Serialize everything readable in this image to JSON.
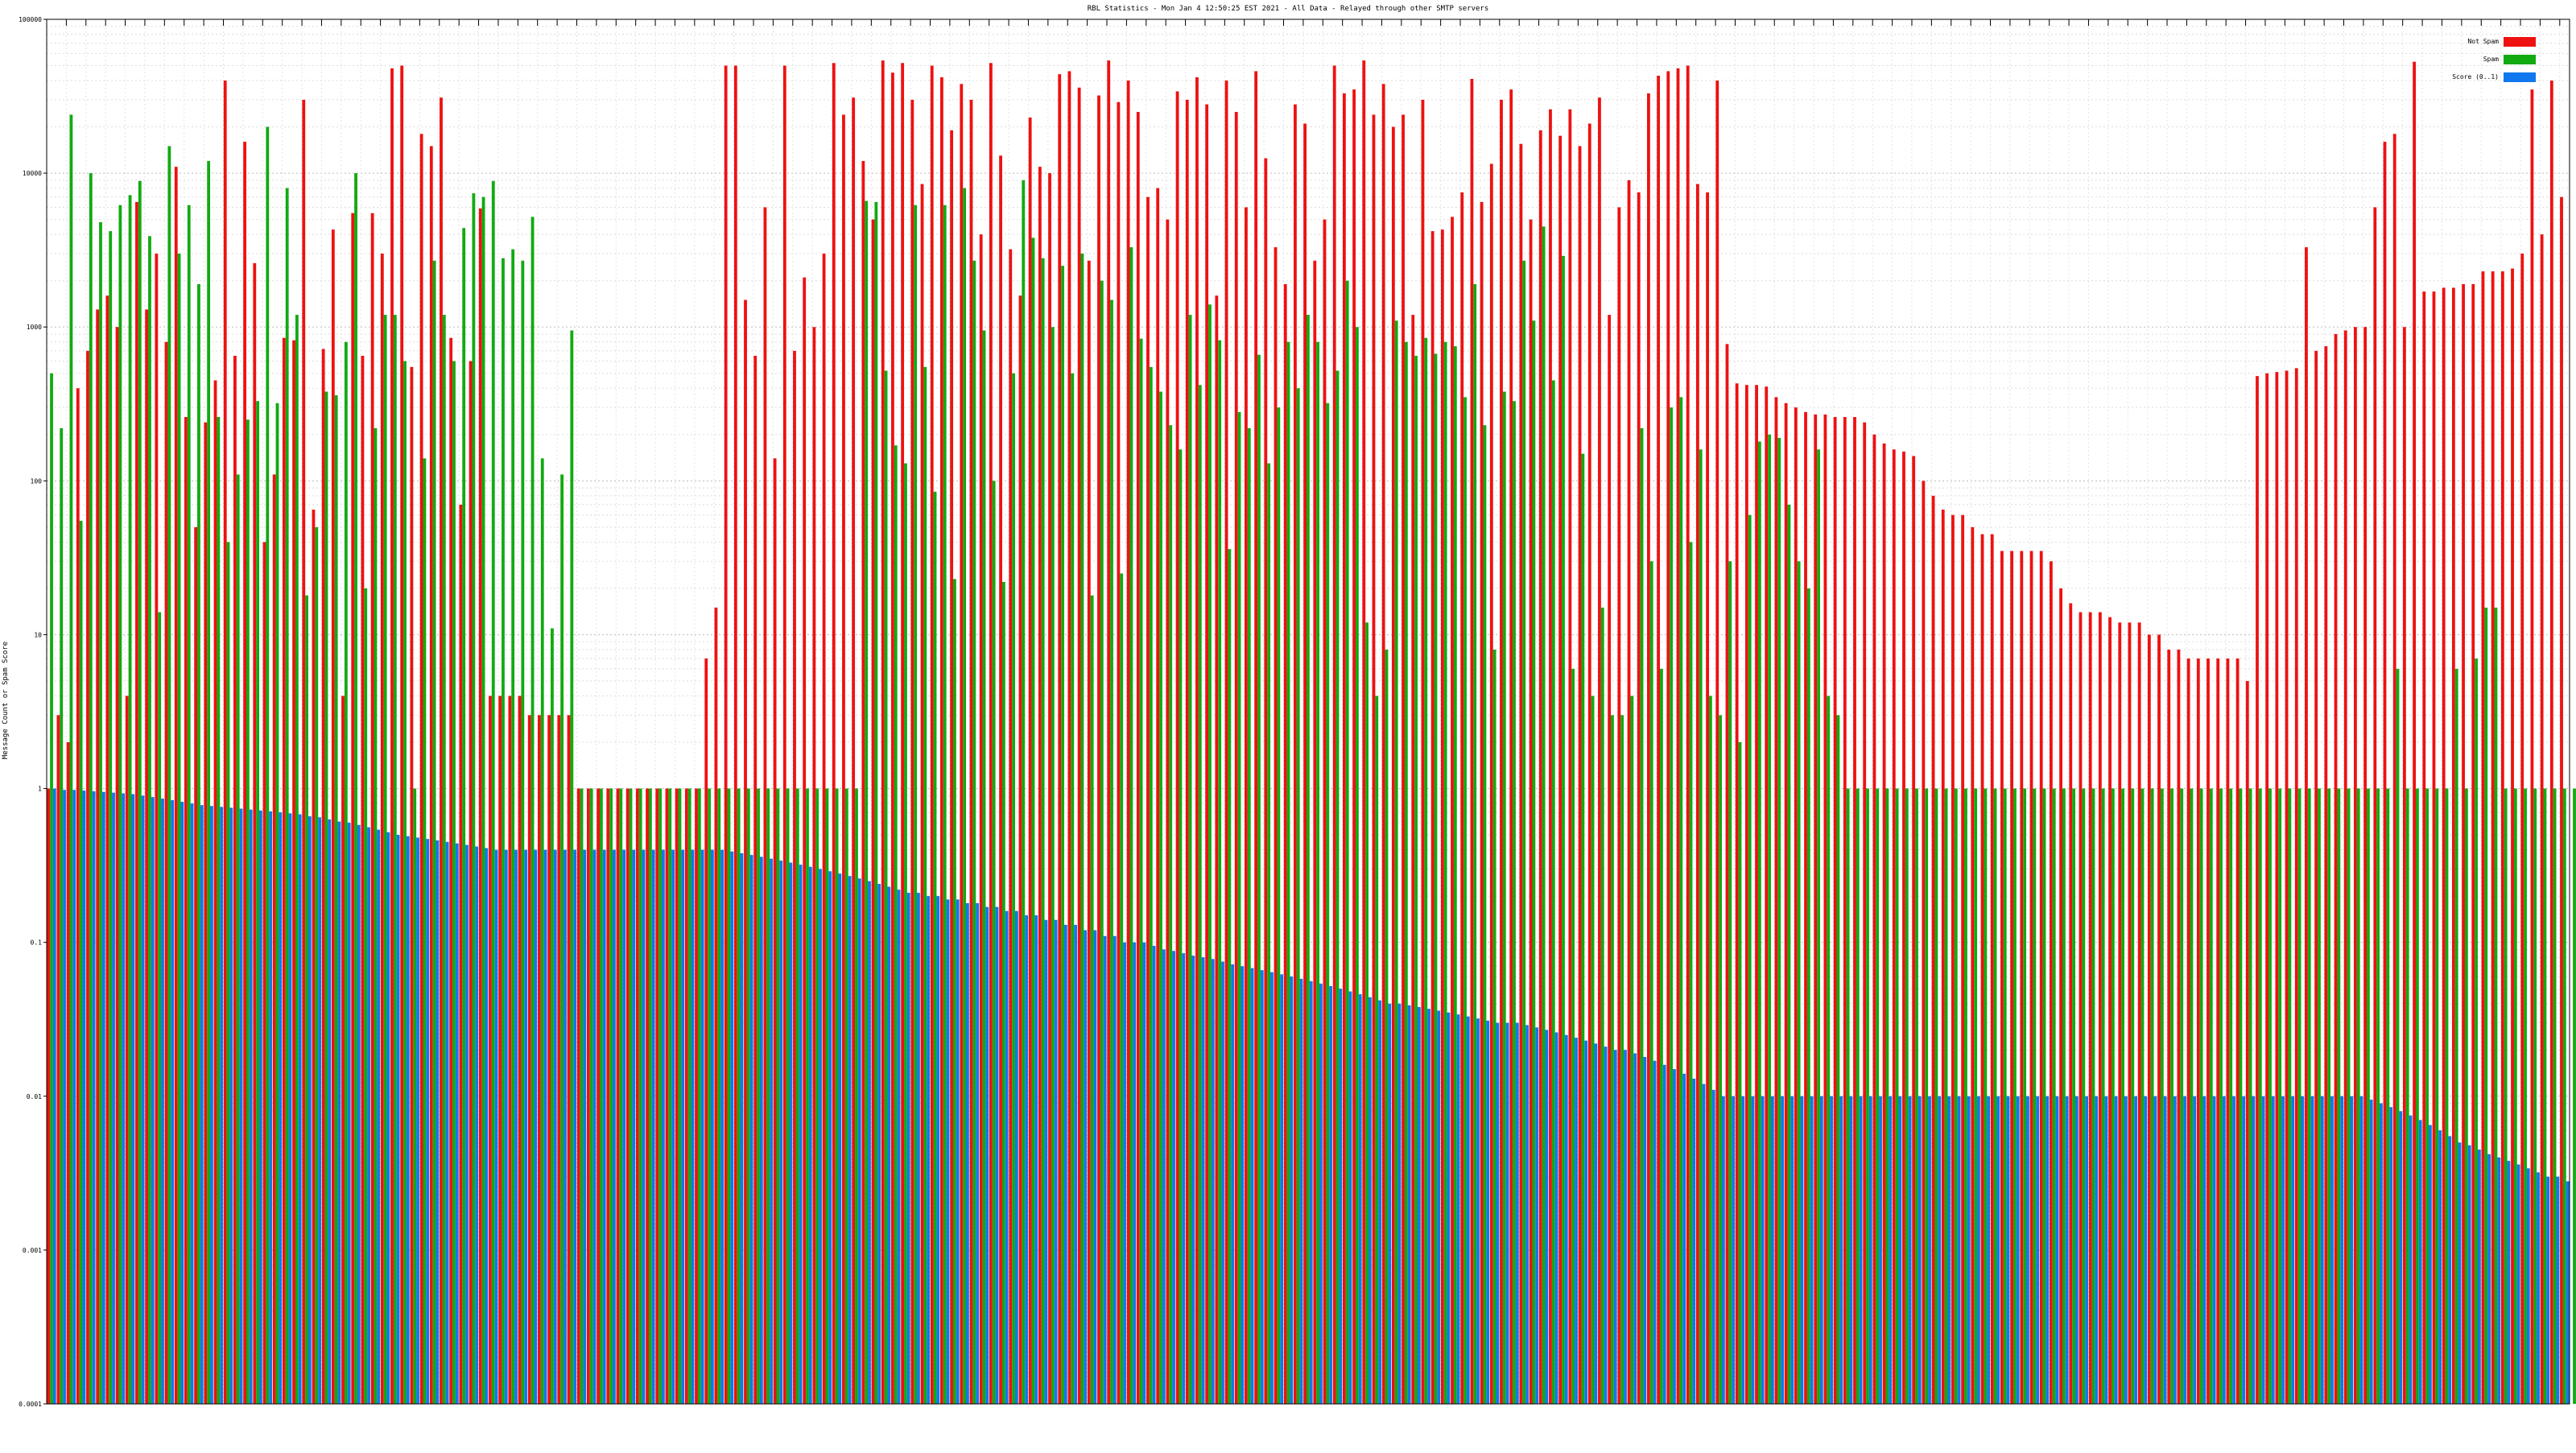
{
  "chart_data": {
    "type": "bar",
    "title": "RBL Statistics - Mon Jan  4 12:50:25 EST 2021 - All Data - Relayed through other SMTP servers",
    "ylabel": "Message Count or Spam Score",
    "xlabel": "",
    "y_scale": "log",
    "ylim": [
      0.0001,
      100000
    ],
    "y_ticks": [
      "0.0001",
      "0.001",
      "0.01",
      "0.1",
      "1",
      "10",
      "100",
      "1000",
      "10000",
      "100000"
    ],
    "grid": true,
    "legend_placement": "top-right",
    "colors": {
      "Not Spam": "#ee1111",
      "Spam": "#11aa11",
      "Score (0..1)": "#1177ee"
    },
    "series": [
      {
        "name": "Not Spam",
        "values": [
          1,
          3,
          2,
          400,
          700,
          1300,
          1600,
          1000,
          4,
          6500,
          1300,
          3000,
          800,
          11000,
          260,
          50,
          240,
          450,
          40000,
          650,
          16000,
          2600,
          40,
          110,
          850,
          820,
          30000,
          65,
          720,
          4300,
          4,
          5500,
          650,
          5500,
          3000,
          48000,
          50000,
          550,
          18000,
          15000,
          31000,
          850,
          70,
          600,
          5900,
          4,
          4,
          4,
          4,
          3,
          3,
          3,
          3,
          3,
          1,
          1,
          1,
          1,
          1,
          1,
          1,
          1,
          1,
          1,
          1,
          1,
          1,
          7,
          15,
          50000,
          50000,
          1500,
          650,
          6000,
          140,
          50000,
          700,
          2100,
          1000,
          3000,
          52000,
          24000,
          31000,
          12000,
          5000,
          54000,
          45000,
          52000,
          30000,
          8500,
          50000,
          42000,
          19000,
          38000,
          30000,
          4000,
          52000,
          13000,
          3200,
          1600,
          23000,
          11000,
          10000,
          44000,
          46000,
          36000,
          2700,
          32000,
          54000,
          29000,
          40000,
          25000,
          7000,
          8000,
          5000,
          34000,
          30000,
          42000,
          28000,
          1600,
          40000,
          25000,
          6000,
          46000,
          12500,
          3300,
          1900,
          28000,
          21000,
          2700,
          5000,
          50000,
          33000,
          35000,
          54000,
          24000,
          38000,
          20000,
          24000,
          1200,
          30000,
          4200,
          4300,
          5200,
          7500,
          41000,
          6500,
          11500,
          30000,
          35000,
          15500,
          5000,
          19000,
          26000,
          17500,
          26000,
          15000,
          21000,
          31000,
          1200,
          6000,
          9000,
          7500,
          33000,
          43000,
          46000,
          48000,
          50000,
          8500,
          7500,
          40000,
          775,
          430,
          420,
          420,
          410,
          350,
          320,
          300,
          280,
          270,
          270,
          260,
          260,
          260,
          240,
          200,
          175,
          160,
          155,
          145,
          100,
          80,
          65,
          60,
          60,
          50,
          45,
          45,
          35,
          35,
          35,
          35,
          35,
          30,
          20,
          16,
          14,
          14,
          14,
          13,
          12,
          12,
          12,
          10,
          10,
          8,
          8,
          7,
          7,
          7,
          7,
          7,
          7,
          5,
          480,
          500,
          510,
          520,
          540,
          3300,
          700,
          750,
          900,
          950,
          1000,
          1000,
          6000,
          16000,
          18000,
          1000,
          53000,
          1700,
          1700,
          1800,
          1800,
          1900,
          1900,
          2300,
          2300,
          2300,
          2400,
          3000,
          35000,
          4000,
          40000,
          7000
        ]
      },
      {
        "name": "Spam",
        "values": [
          500,
          220,
          24000,
          55,
          10000,
          4800,
          4200,
          6200,
          7200,
          8900,
          3900,
          14,
          15000,
          3000,
          6200,
          1900,
          12000,
          260,
          40,
          110,
          250,
          330,
          20000,
          320,
          8000,
          1200,
          18,
          50,
          380,
          360,
          800,
          10000,
          20,
          220,
          1200,
          1200,
          600,
          1,
          140,
          2700,
          1200,
          600,
          4400,
          7400,
          7000,
          8900,
          2800,
          3200,
          2700,
          5200,
          140,
          11,
          110,
          950,
          1,
          1,
          1,
          1,
          1,
          1,
          1,
          1,
          1,
          1,
          1,
          1,
          1,
          1,
          1,
          1,
          1,
          1,
          1,
          1,
          1,
          1,
          1,
          1,
          1,
          1,
          1,
          1,
          1,
          6600,
          6500,
          520,
          170,
          130,
          6200,
          550,
          85,
          6200,
          23,
          8000,
          2700,
          950,
          100,
          22,
          500,
          9000,
          3800,
          2800,
          1000,
          2500,
          500,
          3000,
          18,
          2000,
          1500,
          25,
          3300,
          840,
          550,
          380,
          230,
          160,
          1200,
          420,
          1400,
          820,
          36,
          280,
          220,
          660,
          130,
          300,
          800,
          400,
          1200,
          800,
          320,
          520,
          2000,
          1000,
          12,
          4,
          8,
          1100,
          800,
          650,
          850,
          670,
          800,
          750,
          350,
          1900,
          230,
          8,
          380,
          330,
          2700,
          1100,
          4500,
          450,
          2900,
          6,
          150,
          4,
          15,
          3,
          3,
          4,
          220,
          30,
          6,
          300,
          350,
          40,
          160,
          4,
          3,
          30,
          2,
          60,
          180,
          200,
          190,
          70,
          30,
          20,
          160,
          4,
          3,
          1,
          1,
          1,
          1,
          1,
          1,
          1,
          1,
          1,
          1,
          1,
          1,
          1,
          1,
          1,
          1,
          1,
          1,
          1,
          1,
          1,
          1,
          1,
          1,
          1,
          1,
          1,
          1,
          1,
          1,
          1,
          1,
          1,
          1,
          1,
          1,
          1,
          1,
          1,
          1,
          1,
          1,
          1,
          1,
          1,
          1,
          1,
          1,
          1,
          1,
          1,
          1,
          1,
          1,
          1,
          1,
          6,
          1,
          1,
          1,
          1,
          1,
          6,
          1,
          7,
          15,
          15,
          1,
          1,
          1,
          1,
          1,
          1,
          1,
          1,
          1,
          1,
          1,
          1,
          20,
          1,
          1,
          10,
          7
        ]
      },
      {
        "name": "Score (0..1)",
        "values": [
          1,
          0.98,
          0.98,
          0.97,
          0.96,
          0.95,
          0.94,
          0.93,
          0.92,
          0.9,
          0.88,
          0.86,
          0.84,
          0.82,
          0.8,
          0.78,
          0.77,
          0.76,
          0.75,
          0.74,
          0.73,
          0.72,
          0.71,
          0.7,
          0.69,
          0.68,
          0.66,
          0.65,
          0.63,
          0.61,
          0.6,
          0.58,
          0.56,
          0.54,
          0.52,
          0.5,
          0.49,
          0.48,
          0.47,
          0.46,
          0.45,
          0.44,
          0.43,
          0.42,
          0.41,
          0.4,
          0.4,
          0.4,
          0.4,
          0.4,
          0.4,
          0.4,
          0.4,
          0.4,
          0.4,
          0.4,
          0.4,
          0.4,
          0.4,
          0.4,
          0.4,
          0.4,
          0.4,
          0.4,
          0.4,
          0.4,
          0.4,
          0.4,
          0.4,
          0.39,
          0.38,
          0.37,
          0.36,
          0.35,
          0.34,
          0.33,
          0.32,
          0.31,
          0.3,
          0.29,
          0.28,
          0.27,
          0.26,
          0.25,
          0.24,
          0.23,
          0.22,
          0.21,
          0.21,
          0.2,
          0.2,
          0.19,
          0.19,
          0.18,
          0.18,
          0.17,
          0.17,
          0.16,
          0.16,
          0.15,
          0.15,
          0.14,
          0.14,
          0.13,
          0.13,
          0.12,
          0.12,
          0.11,
          0.11,
          0.1,
          0.1,
          0.1,
          0.095,
          0.09,
          0.088,
          0.085,
          0.082,
          0.08,
          0.078,
          0.075,
          0.072,
          0.07,
          0.068,
          0.066,
          0.064,
          0.062,
          0.06,
          0.058,
          0.056,
          0.054,
          0.052,
          0.05,
          0.048,
          0.046,
          0.044,
          0.042,
          0.04,
          0.04,
          0.039,
          0.038,
          0.037,
          0.036,
          0.035,
          0.034,
          0.033,
          0.032,
          0.031,
          0.03,
          0.03,
          0.03,
          0.029,
          0.028,
          0.027,
          0.026,
          0.025,
          0.024,
          0.023,
          0.022,
          0.021,
          0.02,
          0.02,
          0.019,
          0.018,
          0.017,
          0.016,
          0.015,
          0.014,
          0.013,
          0.012,
          0.011,
          0.01,
          0.01,
          0.01,
          0.01,
          0.01,
          0.01,
          0.01,
          0.01,
          0.01,
          0.01,
          0.01,
          0.01,
          0.01,
          0.01,
          0.01,
          0.01,
          0.01,
          0.01,
          0.01,
          0.01,
          0.01,
          0.01,
          0.01,
          0.01,
          0.01,
          0.01,
          0.01,
          0.01,
          0.01,
          0.01,
          0.01,
          0.01,
          0.01,
          0.01,
          0.01,
          0.01,
          0.01,
          0.01,
          0.01,
          0.01,
          0.01,
          0.01,
          0.01,
          0.01,
          0.01,
          0.01,
          0.01,
          0.01,
          0.01,
          0.01,
          0.01,
          0.01,
          0.01,
          0.01,
          0.01,
          0.01,
          0.01,
          0.01,
          0.01,
          0.01,
          0.01,
          0.01,
          0.01,
          0.01,
          0.01,
          0.01,
          0.0095,
          0.009,
          0.0085,
          0.008,
          0.0075,
          0.007,
          0.0065,
          0.006,
          0.0055,
          0.005,
          0.0048,
          0.0045,
          0.0042,
          0.004,
          0.0038,
          0.0036,
          0.0034,
          0.0032,
          0.003,
          0.003,
          0.0028,
          0.0026,
          0.0025,
          0.0024,
          0.0023,
          0.0022,
          0.0021,
          0.002,
          0.0018,
          0.0016,
          0.0014,
          0.0012,
          0.001,
          0.0008,
          0.0006,
          0.0004,
          0.0003
        ]
      }
    ],
    "categories_note_omitted": true
  }
}
